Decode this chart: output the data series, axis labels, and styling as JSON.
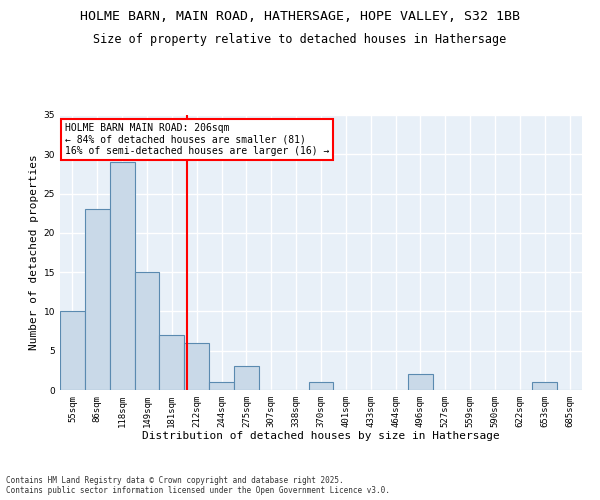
{
  "title1": "HOLME BARN, MAIN ROAD, HATHERSAGE, HOPE VALLEY, S32 1BB",
  "title2": "Size of property relative to detached houses in Hathersage",
  "xlabel": "Distribution of detached houses by size in Hathersage",
  "ylabel": "Number of detached properties",
  "categories": [
    "55sqm",
    "86sqm",
    "118sqm",
    "149sqm",
    "181sqm",
    "212sqm",
    "244sqm",
    "275sqm",
    "307sqm",
    "338sqm",
    "370sqm",
    "401sqm",
    "433sqm",
    "464sqm",
    "496sqm",
    "527sqm",
    "559sqm",
    "590sqm",
    "622sqm",
    "653sqm",
    "685sqm"
  ],
  "values": [
    10,
    23,
    29,
    15,
    7,
    6,
    1,
    3,
    0,
    0,
    1,
    0,
    0,
    0,
    2,
    0,
    0,
    0,
    0,
    1,
    0
  ],
  "bar_color": "#c9d9e8",
  "bar_edge_color": "#5a8ab0",
  "bar_linewidth": 0.8,
  "red_line_x": 4.62,
  "annotation_text": "HOLME BARN MAIN ROAD: 206sqm\n← 84% of detached houses are smaller (81)\n16% of semi-detached houses are larger (16) →",
  "annotation_box_color": "white",
  "annotation_box_edge": "red",
  "red_line_color": "red",
  "ylim": [
    0,
    35
  ],
  "yticks": [
    0,
    5,
    10,
    15,
    20,
    25,
    30,
    35
  ],
  "background_color": "#e8f0f8",
  "grid_color": "white",
  "footnote": "Contains HM Land Registry data © Crown copyright and database right 2025.\nContains public sector information licensed under the Open Government Licence v3.0.",
  "title_fontsize": 9.5,
  "subtitle_fontsize": 8.5,
  "xlabel_fontsize": 8,
  "ylabel_fontsize": 8,
  "tick_fontsize": 6.5,
  "annot_fontsize": 7,
  "footnote_fontsize": 5.5
}
